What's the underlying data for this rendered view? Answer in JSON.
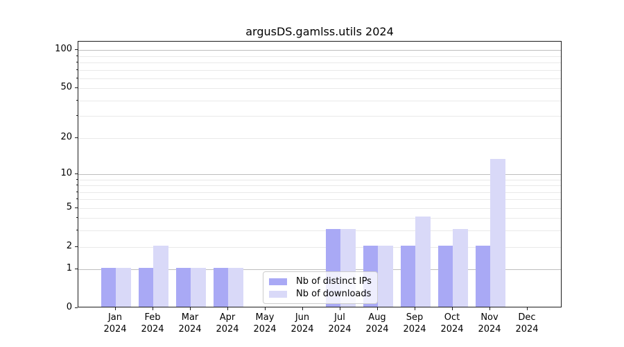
{
  "chart_data": {
    "type": "bar",
    "title": "argusDS.gamlss.utils 2024",
    "categories": [
      "Jan",
      "Feb",
      "Mar",
      "Apr",
      "May",
      "Jun",
      "Jul",
      "Aug",
      "Sep",
      "Oct",
      "Nov",
      "Dec"
    ],
    "x_year": "2024",
    "series": [
      {
        "name": "Nb of distinct IPs",
        "color": "#a9a9f5",
        "values": [
          1,
          1,
          1,
          1,
          0,
          0,
          3,
          2,
          2,
          2,
          2,
          0
        ]
      },
      {
        "name": "Nb of downloads",
        "color": "#d9d9f8",
        "values": [
          1,
          2,
          1,
          1,
          0,
          0,
          3,
          2,
          4,
          3,
          13,
          0
        ]
      }
    ],
    "yticks": [
      100,
      50,
      20,
      10,
      5,
      2,
      1,
      0
    ],
    "gridlines": {
      "major": [
        1,
        10,
        100
      ],
      "minor": [
        2,
        3,
        4,
        5,
        6,
        7,
        8,
        9,
        20,
        30,
        40,
        50,
        60,
        70,
        80,
        90
      ]
    },
    "scale": "log1p",
    "ylim": [
      0,
      100
    ],
    "grid": true,
    "legend_position": "lower center"
  }
}
